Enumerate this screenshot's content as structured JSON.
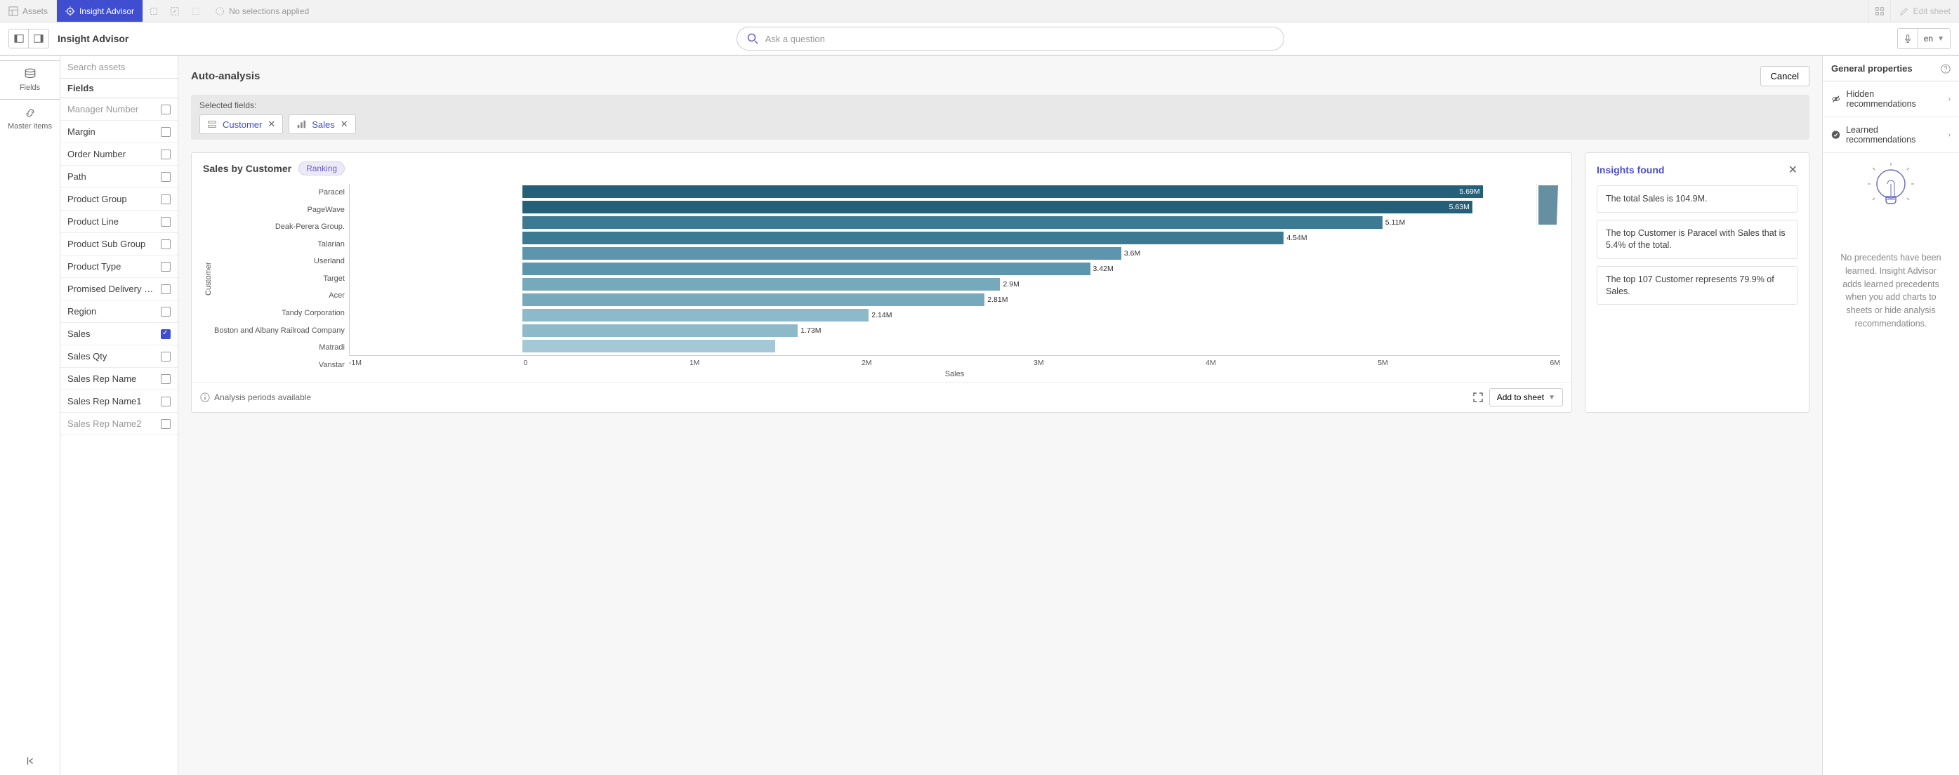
{
  "top_toolbar": {
    "assets": "Assets",
    "insight_advisor": "Insight Advisor",
    "no_selections": "No selections applied",
    "edit_sheet": "Edit sheet"
  },
  "sub_toolbar": {
    "title": "Insight Advisor",
    "search_placeholder": "Ask a question",
    "lang": "en"
  },
  "left_rail": {
    "fields": "Fields",
    "master_items": "Master items"
  },
  "fields_panel": {
    "search_placeholder": "Search assets",
    "header": "Fields",
    "items": [
      {
        "label": "Manager Number",
        "checked": false,
        "cut": true
      },
      {
        "label": "Margin",
        "checked": false
      },
      {
        "label": "Order Number",
        "checked": false
      },
      {
        "label": "Path",
        "checked": false
      },
      {
        "label": "Product Group",
        "checked": false
      },
      {
        "label": "Product Line",
        "checked": false
      },
      {
        "label": "Product Sub Group",
        "checked": false
      },
      {
        "label": "Product Type",
        "checked": false
      },
      {
        "label": "Promised Delivery D...",
        "checked": false
      },
      {
        "label": "Region",
        "checked": false
      },
      {
        "label": "Sales",
        "checked": true
      },
      {
        "label": "Sales Qty",
        "checked": false
      },
      {
        "label": "Sales Rep Name",
        "checked": false
      },
      {
        "label": "Sales Rep Name1",
        "checked": false
      },
      {
        "label": "Sales Rep Name2",
        "checked": false,
        "cut": true
      }
    ]
  },
  "center": {
    "title": "Auto-analysis",
    "cancel": "Cancel",
    "selected_fields_label": "Selected fields:",
    "chips": [
      {
        "label": "Customer",
        "type": "dimension"
      },
      {
        "label": "Sales",
        "type": "measure"
      }
    ],
    "chart": {
      "title": "Sales by Customer",
      "badge": "Ranking",
      "type": "bar-horizontal",
      "y_axis_label": "Customer",
      "x_axis_label": "Sales",
      "x_ticks": [
        "-1M",
        "0",
        "1M",
        "2M",
        "3M",
        "4M",
        "5M",
        "6M"
      ],
      "x_min": -1,
      "x_max": 6,
      "bars": [
        {
          "label": "Paracel",
          "value": 5.69,
          "display": "5.69M",
          "color": "#25607a",
          "text_inside": true
        },
        {
          "label": "PageWave",
          "value": 5.63,
          "display": "5.63M",
          "color": "#25607a",
          "text_inside": true
        },
        {
          "label": "Deak-Perera Group.",
          "value": 5.11,
          "display": "5.11M",
          "color": "#3c7a94"
        },
        {
          "label": "Talarian",
          "value": 4.54,
          "display": "4.54M",
          "color": "#3c7a94"
        },
        {
          "label": "Userland",
          "value": 3.6,
          "display": "3.6M",
          "color": "#5c95ad"
        },
        {
          "label": "Target",
          "value": 3.42,
          "display": "3.42M",
          "color": "#5c95ad"
        },
        {
          "label": "Acer",
          "value": 2.9,
          "display": "2.9M",
          "color": "#77a9bd"
        },
        {
          "label": "Tandy Corporation",
          "value": 2.81,
          "display": "2.81M",
          "color": "#77a9bd"
        },
        {
          "label": "Boston and Albany Railroad Company",
          "value": 2.14,
          "display": "2.14M",
          "color": "#8eb9c9"
        },
        {
          "label": "Matradi",
          "value": 1.73,
          "display": "1.73M",
          "color": "#8eb9c9"
        },
        {
          "label": "Vanstar",
          "value": 1.6,
          "display": "",
          "color": "#a4c8d5"
        }
      ],
      "footer_text": "Analysis periods available",
      "add_btn": "Add to sheet"
    },
    "insights": {
      "title": "Insights found",
      "items": [
        "The total Sales is 104.9M.",
        "The top Customer is Paracel with Sales that is 5.4% of the total.",
        "The top 107 Customer represents 79.9% of Sales."
      ]
    }
  },
  "right_panel": {
    "header": "General properties",
    "hidden_rec": "Hidden recommendations",
    "learned_rec": "Learned recommendations",
    "empty_text": "No precedents have been learned. Insight Advisor adds learned precedents when you add charts to sheets or hide analysis recommendations."
  }
}
